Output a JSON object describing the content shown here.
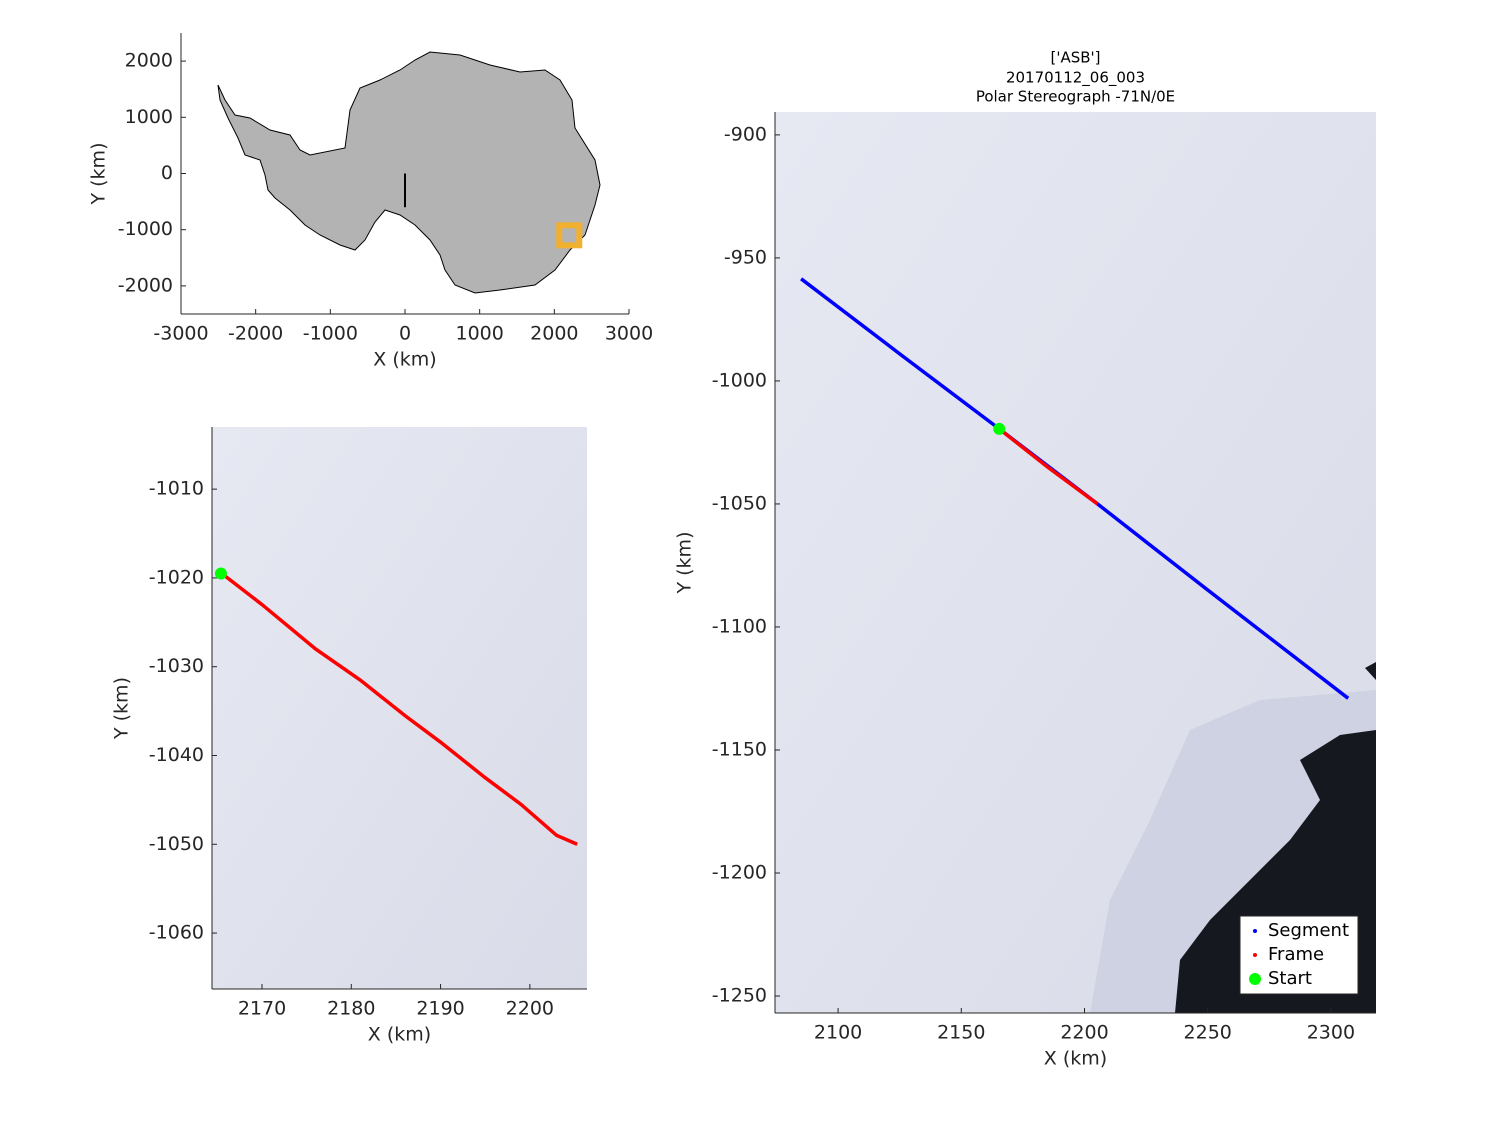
{
  "chart_data": [
    {
      "type": "map",
      "xlabel": "X (km)",
      "ylabel": "Y (km)",
      "xlim": [
        -3000,
        3000
      ],
      "xticks": [
        -3000,
        -2000,
        -1000,
        0,
        1000,
        2000,
        3000
      ],
      "ylim": [
        -2500,
        2500
      ],
      "yticks": [
        -2000,
        -1000,
        0,
        1000,
        2000
      ],
      "series": [
        {
          "color": "#000000",
          "x": [
            0,
            0
          ],
          "y": [
            0,
            -600
          ]
        },
        {
          "color": "#f0b030",
          "x": [
            2200
          ],
          "y": [
            -1100
          ]
        }
      ]
    },
    {
      "type": "line",
      "xlabel": "X (km)",
      "ylabel": "Y (km)",
      "xlim": [
        2164.4,
        2206.4
      ],
      "xticks": [
        2170,
        2180,
        2190,
        2200
      ],
      "ylim": [
        -1066.3,
        -1003
      ],
      "yticks": [
        -1060,
        -1050,
        -1040,
        -1030,
        -1020,
        -1010
      ],
      "series": [
        {
          "color": "#ff0000",
          "x": [
            2165.5,
            2170,
            2176,
            2181,
            2186,
            2190,
            2195,
            2199,
            2203,
            2205.3
          ],
          "y": [
            -1019.5,
            -1023,
            -1028,
            -1031.5,
            -1035.5,
            -1038.5,
            -1042.5,
            -1045.5,
            -1049,
            -1050
          ]
        },
        {
          "color": "#00ff00",
          "x": [
            2165.4
          ],
          "y": [
            -1019.5
          ]
        }
      ]
    },
    {
      "type": "line",
      "title": "['ASB']",
      "subtitle": "20170112_06_003",
      "caption": "Polar Stereograph -71N/0E",
      "xlabel": "X (km)",
      "ylabel": "Y (km)",
      "xlim": [
        2074.4,
        2318.3
      ],
      "xticks": [
        2100,
        2150,
        2200,
        2250,
        2300
      ],
      "ylim": [
        -1256.9,
        -890.7
      ],
      "yticks": [
        -1250,
        -1200,
        -1150,
        -1100,
        -1050,
        -1000,
        -950,
        -900
      ],
      "legend": "lower-right",
      "series": [
        {
          "name": "Segment",
          "color": "#0000ff",
          "x": [
            2085,
            2125,
            2165.4,
            2205.3,
            2250,
            2307
          ],
          "y": [
            -958.5,
            -989,
            -1019.5,
            -1050,
            -1085,
            -1129
          ]
        },
        {
          "name": "Frame",
          "color": "#ff0000",
          "x": [
            2165.4,
            2185,
            2205.3
          ],
          "y": [
            -1019.5,
            -1035,
            -1050
          ]
        },
        {
          "name": "Start",
          "color": "#00ff00",
          "x": [
            2165.4
          ],
          "y": [
            -1019.5
          ]
        }
      ]
    }
  ]
}
